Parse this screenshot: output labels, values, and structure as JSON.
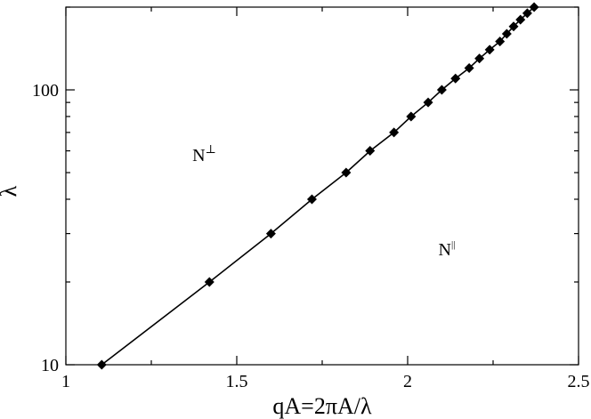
{
  "chart_data": {
    "type": "line",
    "xlabel": "qA=2πA/λ",
    "ylabel": "λ",
    "xlim": [
      1,
      2.5
    ],
    "ylim": [
      10,
      200
    ],
    "yscale": "log",
    "grid": false,
    "x_ticks": [
      {
        "value": 1,
        "label": "1"
      },
      {
        "value": 1.5,
        "label": "1.5"
      },
      {
        "value": 2,
        "label": "2"
      },
      {
        "value": 2.5,
        "label": "2.5"
      }
    ],
    "y_ticks": [
      {
        "value": 10,
        "label": "10"
      },
      {
        "value": 100,
        "label": "100"
      }
    ],
    "series": [
      {
        "x": [
          1.105,
          1.42,
          1.6,
          1.72,
          1.82,
          1.89,
          1.96,
          2.01,
          2.06,
          2.1,
          2.14,
          2.18,
          2.21,
          2.24,
          2.27,
          2.29,
          2.31,
          2.33,
          2.35,
          2.37
        ],
        "y": [
          10,
          20,
          30,
          40,
          50,
          60,
          70,
          80,
          90,
          100,
          110,
          120,
          130,
          140,
          150,
          160,
          170,
          180,
          190,
          200
        ],
        "marker": "diamond",
        "color": "#000000"
      }
    ],
    "annotations": [
      {
        "text": "N",
        "sup": "⊥",
        "x": 1.37,
        "y": 55
      },
      {
        "text": "N",
        "sup": "||",
        "x": 2.09,
        "y": 25
      }
    ]
  }
}
